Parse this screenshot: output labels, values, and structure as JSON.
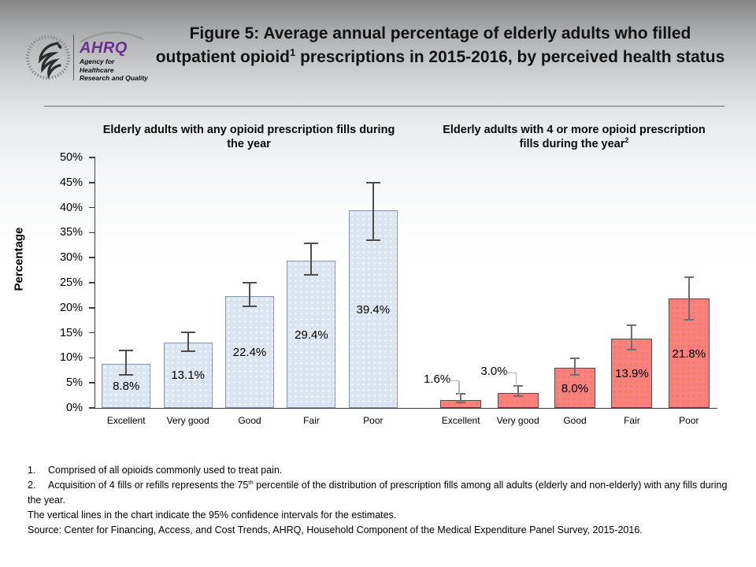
{
  "header": {
    "logo": {
      "ahrq_acronym": "AHRQ",
      "tagline_line1": "Agency for Healthcare",
      "tagline_line2": "Research and Quality",
      "brand_purple": "#6b2d91"
    },
    "title": {
      "part1": "Figure 5: Average annual percentage of elderly adults who filled outpatient opioid",
      "sup": "1",
      "part2": " prescriptions in 2015-2016, by perceived health status"
    }
  },
  "chart_data": {
    "type": "bar",
    "ylabel": "Percentage",
    "y_axis": {
      "min": 0,
      "max": 50,
      "step": 5,
      "suffix": "%"
    },
    "grid": false,
    "legend": "none",
    "note": "error bars = 95% confidence intervals",
    "groups": [
      {
        "subtitle": "Elderly adults with any opioid prescription fills during the year",
        "subtitle_sup": "",
        "categories": [
          "Excellent",
          "Very good",
          "Good",
          "Fair",
          "Poor"
        ],
        "values": [
          8.8,
          13.1,
          22.4,
          29.4,
          39.4
        ],
        "labels": [
          "8.8%",
          "13.1%",
          "22.4%",
          "29.4%",
          "39.4%"
        ],
        "ci_low": [
          6.4,
          11.2,
          20.1,
          26.4,
          33.3
        ],
        "ci_high": [
          11.0,
          14.6,
          24.5,
          32.4,
          44.5
        ],
        "label_outside": [
          false,
          false,
          false,
          false,
          false
        ],
        "fill": "#dbe5f1",
        "dot": "rgba(255,255,255,0.9)",
        "border": "#8496ad",
        "error_color": "#4d4d4d"
      },
      {
        "subtitle": "Elderly adults with 4 or more opioid prescription fills during the year",
        "subtitle_sup": "2",
        "categories": [
          "Excellent",
          "Very good",
          "Good",
          "Fair",
          "Poor"
        ],
        "values": [
          1.6,
          3.0,
          8.0,
          13.9,
          21.8
        ],
        "labels": [
          "1.6%",
          "3.0%",
          "8.0%",
          "13.9%",
          "21.8%"
        ],
        "ci_low": [
          0.9,
          2.2,
          6.4,
          11.5,
          17.5
        ],
        "ci_high": [
          2.3,
          3.9,
          9.4,
          16.0,
          25.6
        ],
        "label_outside": [
          true,
          true,
          false,
          false,
          false
        ],
        "fill": "#f8807d",
        "dot": "rgba(206,126,48,0.55)",
        "border": "#4d4d4d",
        "error_color": "#6e6e6e"
      }
    ]
  },
  "footnotes": {
    "note1": {
      "num": "1.",
      "text": "Comprised of all opioids commonly used to treat pain."
    },
    "note2": {
      "num": "2.",
      "pre": "Acquisition of 4 fills or refills represents the 75",
      "sup": "th",
      "post": " percentile of the distribution of prescription fills among all adults (elderly and non-elderly) with any fills during the year."
    },
    "note3": "The vertical lines in the chart indicate the 95% confidence intervals for the estimates.",
    "note4": "Source: Center for Financing, Access, and Cost Trends, AHRQ, Household Component of the Medical Expenditure Panel Survey, 2015-2016."
  }
}
